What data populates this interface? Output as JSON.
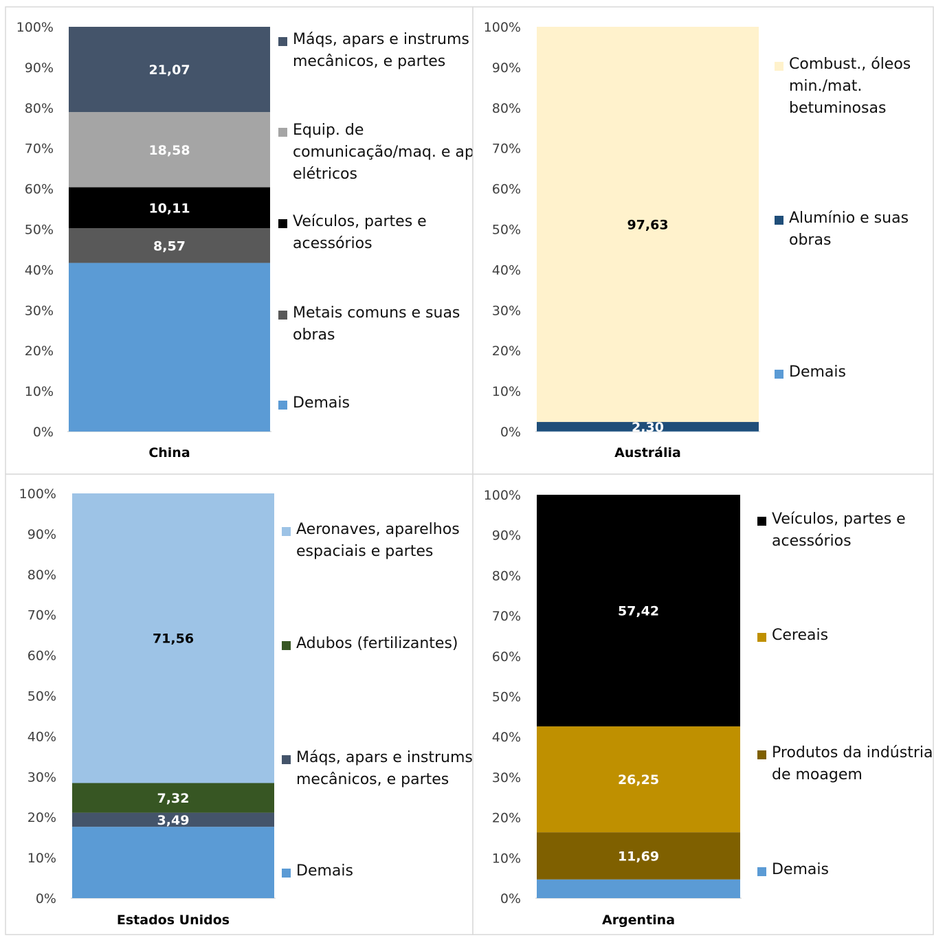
{
  "chart_data": [
    {
      "type": "bar",
      "stacked": true,
      "categories": [
        "China"
      ],
      "ylim": [
        0,
        100
      ],
      "y_ticks": [
        "0%",
        "10%",
        "20%",
        "30%",
        "40%",
        "50%",
        "60%",
        "70%",
        "80%",
        "90%",
        "100%"
      ],
      "grid": false,
      "legend_position": "right",
      "series": [
        {
          "name": "Demais",
          "values": [
            41.67
          ],
          "color": "#5b9bd5",
          "label": ""
        },
        {
          "name": "Metais comuns e suas obras",
          "values": [
            8.57
          ],
          "color": "#595959",
          "label": "8,57",
          "label_color": "#ffffff"
        },
        {
          "name": "Veículos, partes e acessórios",
          "values": [
            10.11
          ],
          "color": "#000000",
          "label": "10,11",
          "label_color": "#ffffff"
        },
        {
          "name": "Equip. de comunicação/maq. e apar. elétricos",
          "values": [
            18.58
          ],
          "color": "#a5a5a5",
          "label": "18,58",
          "label_color": "#ffffff"
        },
        {
          "name": "Máqs, apars e instrums mecânicos, e partes",
          "values": [
            21.07
          ],
          "color": "#44546a",
          "label": "21,07",
          "label_color": "#ffffff"
        }
      ]
    },
    {
      "type": "bar",
      "stacked": true,
      "categories": [
        "Austrália"
      ],
      "ylim": [
        0,
        100
      ],
      "y_ticks": [
        "0%",
        "10%",
        "20%",
        "30%",
        "40%",
        "50%",
        "60%",
        "70%",
        "80%",
        "90%",
        "100%"
      ],
      "grid": false,
      "legend_position": "right",
      "series": [
        {
          "name": "Demais",
          "values": [
            0.07
          ],
          "color": "#5b9bd5",
          "label": ""
        },
        {
          "name": "Alumínio e suas obras",
          "values": [
            2.3
          ],
          "color": "#1f4e79",
          "label": "2,30",
          "label_color": "#ffffff"
        },
        {
          "name": "Combust., óleos min./mat. betuminosas",
          "values": [
            97.63
          ],
          "color": "#fff2cc",
          "label": "97,63",
          "label_color": "#000000"
        }
      ]
    },
    {
      "type": "bar",
      "stacked": true,
      "categories": [
        "Estados Unidos"
      ],
      "ylim": [
        0,
        100
      ],
      "y_ticks": [
        "0%",
        "10%",
        "20%",
        "30%",
        "40%",
        "50%",
        "60%",
        "70%",
        "80%",
        "90%",
        "100%"
      ],
      "grid": false,
      "legend_position": "right",
      "series": [
        {
          "name": "Demais",
          "values": [
            17.63
          ],
          "color": "#5b9bd5",
          "label": ""
        },
        {
          "name": "Máqs, apars e instrums mecânicos, e partes",
          "values": [
            3.49
          ],
          "color": "#44546a",
          "label": "3,49",
          "label_color": "#ffffff"
        },
        {
          "name": "Adubos (fertilizantes)",
          "values": [
            7.32
          ],
          "color": "#375623",
          "label": "7,32",
          "label_color": "#ffffff"
        },
        {
          "name": "Aeronaves, aparelhos espaciais e partes",
          "values": [
            71.56
          ],
          "color": "#9dc3e6",
          "label": "71,56",
          "label_color": "#000000"
        }
      ]
    },
    {
      "type": "bar",
      "stacked": true,
      "categories": [
        "Argentina"
      ],
      "ylim": [
        0,
        100
      ],
      "y_ticks": [
        "0%",
        "10%",
        "20%",
        "30%",
        "40%",
        "50%",
        "60%",
        "70%",
        "80%",
        "90%",
        "100%"
      ],
      "grid": false,
      "legend_position": "right",
      "series": [
        {
          "name": "Demais",
          "values": [
            4.64
          ],
          "color": "#5b9bd5",
          "label": ""
        },
        {
          "name": "Produtos da indústria de moagem",
          "values": [
            11.69
          ],
          "color": "#7f6000",
          "label": "11,69",
          "label_color": "#ffffff"
        },
        {
          "name": "Cereais",
          "values": [
            26.25
          ],
          "color": "#bf9000",
          "label": "26,25",
          "label_color": "#ffffff"
        },
        {
          "name": "Veículos, partes e acessórios",
          "values": [
            57.42
          ],
          "color": "#000000",
          "label": "57,42",
          "label_color": "#ffffff"
        }
      ]
    }
  ]
}
